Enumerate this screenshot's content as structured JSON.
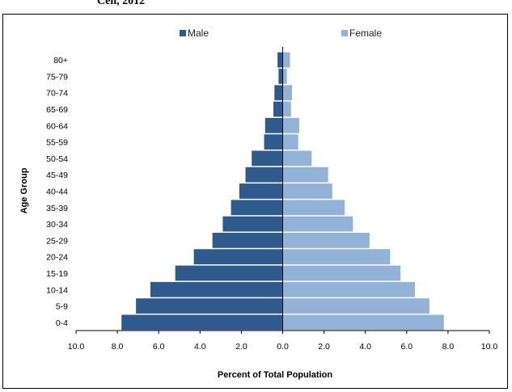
{
  "header": {
    "title_fragment": "Cen, 2012"
  },
  "chart_data": {
    "type": "bar",
    "orientation": "horizontal-population-pyramid",
    "ylabel": "Age Group",
    "xlabel": "Percent of Total Population",
    "xlim": [
      -10,
      10
    ],
    "x_ticks": [
      "10.0",
      "8.0",
      "6.0",
      "4.0",
      "2.0",
      "0.0",
      "2.0",
      "4.0",
      "6.0",
      "8.0",
      "10.0"
    ],
    "categories": [
      "0-4",
      "5-9",
      "10-14",
      "15-19",
      "20-24",
      "25-29",
      "30-34",
      "35-39",
      "40-44",
      "45-49",
      "50-54",
      "55-59",
      "60-64",
      "65-69",
      "70-74",
      "75-79",
      "80+"
    ],
    "series": [
      {
        "name": "Male",
        "color": "#2f5a8e",
        "values": [
          7.8,
          7.1,
          6.4,
          5.2,
          4.3,
          3.4,
          2.9,
          2.5,
          2.1,
          1.8,
          1.5,
          0.9,
          0.85,
          0.45,
          0.4,
          0.2,
          0.25
        ]
      },
      {
        "name": "Female",
        "color": "#93b2d8",
        "values": [
          7.8,
          7.1,
          6.4,
          5.7,
          5.2,
          4.2,
          3.4,
          3.0,
          2.4,
          2.2,
          1.4,
          0.75,
          0.8,
          0.4,
          0.45,
          0.2,
          0.35
        ]
      }
    ],
    "legend": {
      "position": "top",
      "items": [
        "Male",
        "Female"
      ]
    },
    "grid": false
  }
}
